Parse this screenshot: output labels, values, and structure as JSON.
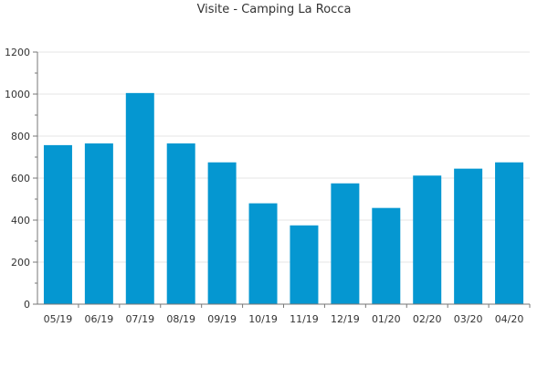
{
  "chart_data": {
    "type": "bar",
    "title": "Visite - Camping La Rocca",
    "xlabel": "",
    "ylabel": "",
    "categories": [
      "05/19",
      "06/19",
      "07/19",
      "08/19",
      "09/19",
      "10/19",
      "11/19",
      "12/19",
      "01/20",
      "02/20",
      "03/20",
      "04/20"
    ],
    "values": [
      757,
      765,
      1005,
      765,
      675,
      480,
      375,
      575,
      458,
      612,
      645,
      675
    ],
    "ylim": [
      0,
      1200
    ],
    "yticks": [
      0,
      200,
      400,
      600,
      800,
      1000,
      1200
    ],
    "grid": true,
    "legend": "none",
    "colors": {
      "bar": "#0597d1",
      "grid": "#e6e6e6",
      "axis": "#777777",
      "text": "#333333"
    }
  }
}
